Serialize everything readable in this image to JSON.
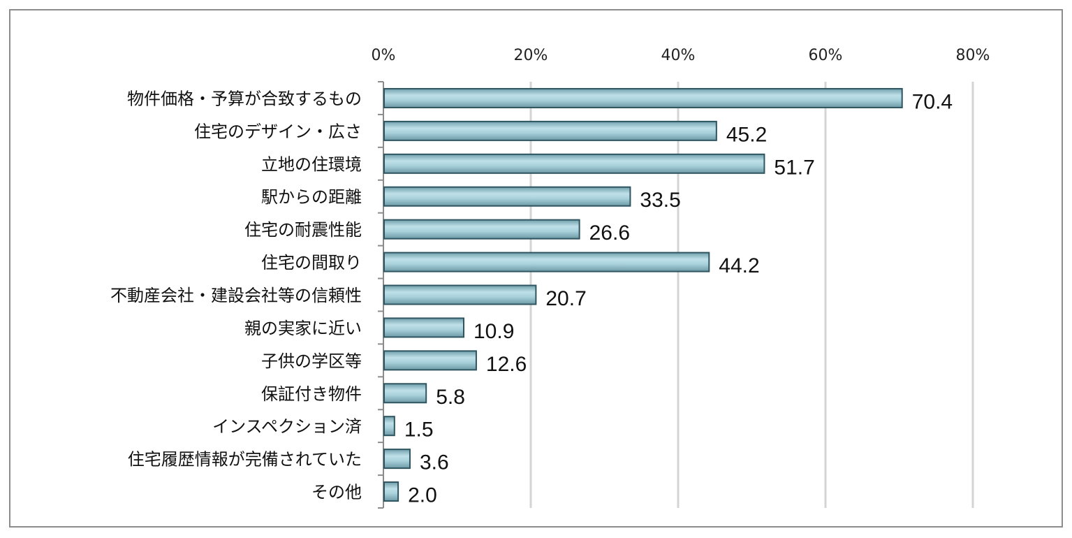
{
  "chart_data": {
    "type": "bar",
    "orientation": "horizontal",
    "title": "",
    "xlabel": "",
    "ylabel": "",
    "xlim": [
      0,
      80
    ],
    "x_ticks": [
      "0%",
      "20%",
      "40%",
      "60%",
      "80%"
    ],
    "x_tick_values": [
      0,
      20,
      40,
      60,
      80
    ],
    "x_axis_position": "top",
    "grid": true,
    "legend": "none",
    "bar_color": "#8fc0cc",
    "bar_edge_color": "#2e5560",
    "categories": [
      "物件価格・予算が合致するもの",
      "住宅のデザイン・広さ",
      "立地の住環境",
      "駅からの距離",
      "住宅の耐震性能",
      "住宅の間取り",
      "不動産会社・建設会社等の信頼性",
      "親の実家に近い",
      "子供の学区等",
      "保証付き物件",
      "インスペクション済",
      "住宅履歴情報が完備されていた",
      "その他"
    ],
    "values": [
      70.4,
      45.2,
      51.7,
      33.5,
      26.6,
      44.2,
      20.7,
      10.9,
      12.6,
      5.8,
      1.5,
      3.6,
      2.0
    ],
    "value_labels": [
      "70.4",
      "45.2",
      "51.7",
      "33.5",
      "26.6",
      "44.2",
      "20.7",
      "10.9",
      "12.6",
      "5.8",
      "1.5",
      "3.6",
      "2.0"
    ]
  }
}
